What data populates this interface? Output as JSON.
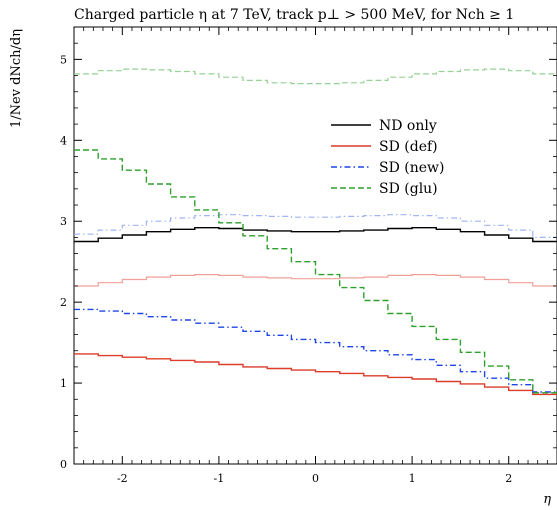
{
  "chart_data": {
    "type": "line",
    "title": "Charged particle η at 7 TeV, track p⊥ > 500 MeV, for Nch ≥ 1",
    "xlabel": "η",
    "ylabel": "1/Nev dNch/dη",
    "xlim": [
      -2.5,
      2.5
    ],
    "ylim": [
      0,
      5.4
    ],
    "x_ticks": [
      -2,
      -1,
      0,
      1,
      2
    ],
    "x_tick_labels": [
      "-2",
      "-1",
      "0",
      "1",
      "2"
    ],
    "y_ticks": [
      0,
      1,
      2,
      3,
      4,
      5
    ],
    "y_tick_labels": [
      "0",
      "1",
      "2",
      "3",
      "4",
      "5"
    ],
    "grid": false,
    "legend_position": "upper-right",
    "bin_edges": [
      -2.5,
      -2.25,
      -2.0,
      -1.75,
      -1.5,
      -1.25,
      -1.0,
      -0.75,
      -0.5,
      -0.25,
      0.0,
      0.25,
      0.5,
      0.75,
      1.0,
      1.25,
      1.5,
      1.75,
      2.0,
      2.25,
      2.5
    ],
    "series": [
      {
        "name": "ND only",
        "color": "#000000",
        "style": "solid",
        "faded": false,
        "in_legend": true,
        "values": [
          2.75,
          2.79,
          2.83,
          2.87,
          2.9,
          2.92,
          2.91,
          2.89,
          2.88,
          2.87,
          2.87,
          2.88,
          2.89,
          2.91,
          2.92,
          2.9,
          2.87,
          2.83,
          2.79,
          2.75
        ]
      },
      {
        "name": "SD (def)",
        "color": "#dc3c28",
        "style": "solid",
        "faded": false,
        "in_legend": true,
        "values": [
          1.36,
          1.34,
          1.32,
          1.3,
          1.28,
          1.26,
          1.23,
          1.2,
          1.18,
          1.16,
          1.14,
          1.12,
          1.09,
          1.07,
          1.05,
          1.02,
          0.99,
          0.95,
          0.91,
          0.86
        ]
      },
      {
        "name": "SD (new)",
        "color": "#1e46e6",
        "style": "dashdot",
        "faded": false,
        "in_legend": true,
        "values": [
          1.91,
          1.89,
          1.86,
          1.82,
          1.78,
          1.74,
          1.69,
          1.64,
          1.59,
          1.54,
          1.5,
          1.45,
          1.4,
          1.35,
          1.29,
          1.22,
          1.14,
          1.06,
          0.98,
          0.89
        ]
      },
      {
        "name": "SD (glu)",
        "color": "#2da02d",
        "style": "dashed",
        "faded": false,
        "in_legend": true,
        "values": [
          3.88,
          3.77,
          3.63,
          3.46,
          3.3,
          3.14,
          2.98,
          2.82,
          2.66,
          2.5,
          2.34,
          2.18,
          2.02,
          1.86,
          1.7,
          1.54,
          1.38,
          1.21,
          1.04,
          0.88
        ]
      },
      {
        "name": "",
        "color": "#f0a096",
        "style": "solid",
        "faded": true,
        "in_legend": false,
        "values": [
          2.2,
          2.24,
          2.28,
          2.31,
          2.33,
          2.34,
          2.33,
          2.31,
          2.3,
          2.29,
          2.29,
          2.3,
          2.31,
          2.33,
          2.34,
          2.33,
          2.31,
          2.28,
          2.24,
          2.2
        ]
      },
      {
        "name": "",
        "color": "#a0b4f5",
        "style": "dashdot",
        "faded": true,
        "in_legend": false,
        "values": [
          2.84,
          2.89,
          2.95,
          3.0,
          3.04,
          3.07,
          3.08,
          3.07,
          3.06,
          3.05,
          3.05,
          3.06,
          3.07,
          3.08,
          3.07,
          3.04,
          3.0,
          2.95,
          2.89,
          2.8
        ]
      },
      {
        "name": "",
        "color": "#96d296",
        "style": "dashed",
        "faded": true,
        "in_legend": false,
        "values": [
          4.82,
          4.86,
          4.88,
          4.87,
          4.85,
          4.82,
          4.78,
          4.74,
          4.71,
          4.7,
          4.7,
          4.71,
          4.74,
          4.78,
          4.82,
          4.85,
          4.87,
          4.88,
          4.86,
          4.82
        ]
      }
    ]
  }
}
